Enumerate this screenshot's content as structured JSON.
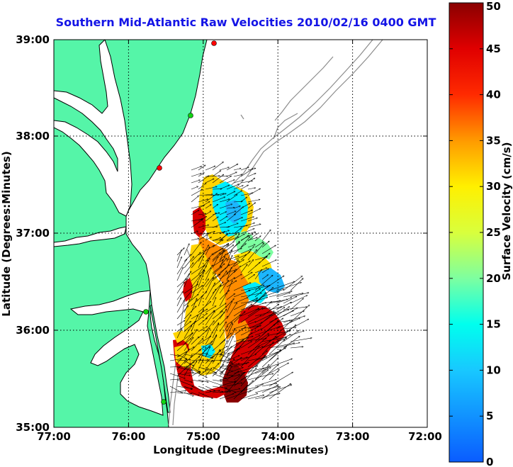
{
  "title": "Southern Mid-Atlantic Raw Velocities 2010/02/16 0400 GMT",
  "map": {
    "xlabel": "Longitude (Degrees:Minutes)",
    "ylabel": "Latitude (Degrees:Minutes)",
    "x_ticks": [
      "77:00",
      "76:00",
      "75:00",
      "74:00",
      "73:00",
      "72:00"
    ],
    "y_ticks": [
      "39:00",
      "38:00",
      "37:00",
      "36:00",
      "35:00"
    ],
    "colors": {
      "land": "#55f5a8",
      "water": "#ffffff",
      "coast": "#000000",
      "bathymetry": "#8c8c8c"
    },
    "stations": [
      {
        "color": "#ff0000"
      },
      {
        "color": "#11d411"
      },
      {
        "color": "#ff0000"
      },
      {
        "color": "#11d411"
      },
      {
        "color": "#11d411"
      }
    ]
  },
  "colorbar": {
    "label": "Surface Velocity (cm/s)",
    "ticks": [
      "0",
      "5",
      "10",
      "15",
      "20",
      "25",
      "30",
      "35",
      "40",
      "45",
      "50"
    ],
    "min": 0,
    "max": 50
  }
}
